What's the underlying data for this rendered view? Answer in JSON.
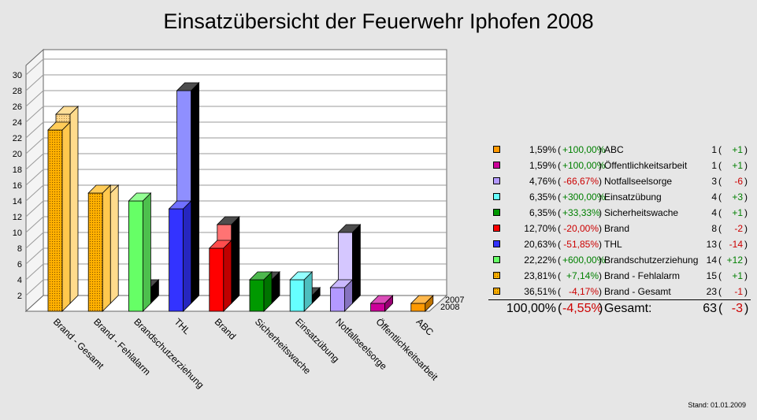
{
  "title": "Einsatzübersicht der Feuerwehr Iphofen 2008",
  "footnote": "Stand: 01.01.2009",
  "chart_data": {
    "type": "bar",
    "categories": [
      "Brand - Gesamt",
      "Brand - Fehlalarm",
      "Brandschutzerziehung",
      "THL",
      "Brand",
      "Sicherheitswache",
      "Einsatzübung",
      "Notfallseelsorge",
      "Öffentlichkeitsarbeit",
      "ABC"
    ],
    "series": [
      {
        "name": "2008",
        "values": [
          23,
          15,
          14,
          13,
          8,
          4,
          4,
          3,
          1,
          1
        ]
      },
      {
        "name": "2007",
        "values": [
          24,
          14,
          2,
          27,
          10,
          3,
          1,
          9,
          0,
          0
        ]
      }
    ],
    "colors": [
      "#ffb000",
      "#ffb000",
      "#66ff66",
      "#3333ff",
      "#ff0000",
      "#009900",
      "#66ffff",
      "#b399ff",
      "#cc0099",
      "#ff9900"
    ],
    "pattern_categories": [
      "Brand - Gesamt",
      "Brand - Fehlalarm"
    ],
    "ylim": [
      0,
      30
    ],
    "yticks": [
      2,
      4,
      6,
      8,
      10,
      12,
      14,
      16,
      18,
      20,
      22,
      24,
      26,
      28,
      30
    ],
    "legend_placement": "right",
    "grid": true,
    "legend": [
      {
        "color": "#ff9900",
        "pattern": false,
        "pct": "1,59%",
        "change": "+100,00%",
        "trend": "pos",
        "name": "ABC",
        "count": "1",
        "delta": "+1"
      },
      {
        "color": "#cc0099",
        "pattern": false,
        "pct": "1,59%",
        "change": "+100,00%",
        "trend": "pos",
        "name": "Öffentlichkeitsarbeit",
        "count": "1",
        "delta": "+1"
      },
      {
        "color": "#b399ff",
        "pattern": false,
        "pct": "4,76%",
        "change": "-66,67%",
        "trend": "neg",
        "name": "Notfallseelsorge",
        "count": "3",
        "delta": "-6"
      },
      {
        "color": "#66ffff",
        "pattern": false,
        "pct": "6,35%",
        "change": "+300,00%",
        "trend": "pos",
        "name": "Einsatzübung",
        "count": "4",
        "delta": "+3"
      },
      {
        "color": "#009900",
        "pattern": false,
        "pct": "6,35%",
        "change": "+33,33%",
        "trend": "pos",
        "name": "Sicherheitswache",
        "count": "4",
        "delta": "+1"
      },
      {
        "color": "#ff0000",
        "pattern": false,
        "pct": "12,70%",
        "change": "-20,00%",
        "trend": "neg",
        "name": "Brand",
        "count": "8",
        "delta": "-2"
      },
      {
        "color": "#3333ff",
        "pattern": false,
        "pct": "20,63%",
        "change": "-51,85%",
        "trend": "neg",
        "name": "THL",
        "count": "13",
        "delta": "-14"
      },
      {
        "color": "#66ff66",
        "pattern": false,
        "pct": "22,22%",
        "change": "+600,00%",
        "trend": "pos",
        "name": "Brandschutzerziehung",
        "count": "14",
        "delta": "+12"
      },
      {
        "color": "#ffb000",
        "pattern": true,
        "pct": "23,81%",
        "change": "+7,14%",
        "trend": "pos",
        "name": "Brand - Fehlalarm",
        "count": "15",
        "delta": "+1"
      },
      {
        "color": "#ffb000",
        "pattern": true,
        "pct": "36,51%",
        "change": "-4,17%",
        "trend": "neg",
        "name": "Brand - Gesamt",
        "count": "23",
        "delta": "-1"
      }
    ],
    "total": {
      "pct": "100,00%",
      "change": "-4,55%",
      "trend": "neg",
      "name": "Gesamt:",
      "count": "63",
      "delta": "-3"
    }
  }
}
